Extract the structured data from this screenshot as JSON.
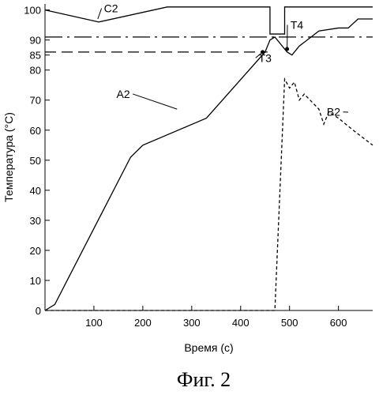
{
  "chart_data": {
    "type": "line",
    "xlabel": "Время (c)",
    "ylabel": "Температура (°C)",
    "caption": "Фиг. 2",
    "xlim": [
      0,
      670
    ],
    "ylim": [
      0,
      102
    ],
    "xticks": [
      100,
      200,
      300,
      400,
      500,
      600
    ],
    "yticks": [
      0,
      10,
      20,
      30,
      40,
      50,
      60,
      70,
      80,
      85,
      90,
      100
    ],
    "series": [
      {
        "name": "A2",
        "style": "solid",
        "x": [
          0,
          20,
          175,
          200,
          330,
          450,
          460,
          470,
          495,
          505,
          520,
          560,
          600,
          620,
          640,
          670
        ],
        "y": [
          0,
          2,
          51,
          55,
          64,
          86,
          90,
          91,
          86,
          85,
          88,
          93,
          94,
          94,
          97,
          97
        ]
      },
      {
        "name": "B2",
        "style": "dashed",
        "x": [
          0,
          470,
          490,
          500,
          510,
          520,
          530,
          560,
          570,
          580,
          600,
          630,
          670
        ],
        "y": [
          0,
          0,
          77,
          74,
          76,
          70,
          72,
          67,
          62,
          66,
          64,
          60,
          55
        ]
      },
      {
        "name": "C2",
        "style": "solid",
        "x": [
          0,
          110,
          250,
          460,
          460,
          490,
          490,
          670
        ],
        "y": [
          100,
          96,
          101,
          101,
          92,
          92,
          101,
          101
        ]
      },
      {
        "name": "",
        "style": "dashdot",
        "x": [
          0,
          670
        ],
        "y": [
          91,
          91
        ]
      },
      {
        "name": "",
        "style": "longdash",
        "x": [
          0,
          455
        ],
        "y": [
          86,
          86
        ]
      }
    ],
    "annotations": [
      {
        "text": "C2",
        "x": 135,
        "y": 99.5,
        "tx": 108,
        "ty": 97
      },
      {
        "text": "A2",
        "x": 160,
        "y": 71,
        "tx": 270,
        "ty": 67
      },
      {
        "text": "B2",
        "x": 590,
        "y": 65,
        "tx": 620,
        "ty": 66
      },
      {
        "text": "T3",
        "x": 450,
        "y": 83,
        "tx": 445,
        "ty": 86
      },
      {
        "text": "T4",
        "x": 515,
        "y": 94,
        "tx": 495,
        "ty": 87
      }
    ],
    "markers": [
      {
        "name": "T3",
        "x": 445,
        "y": 86
      },
      {
        "name": "T4",
        "x": 495,
        "y": 87
      }
    ]
  }
}
